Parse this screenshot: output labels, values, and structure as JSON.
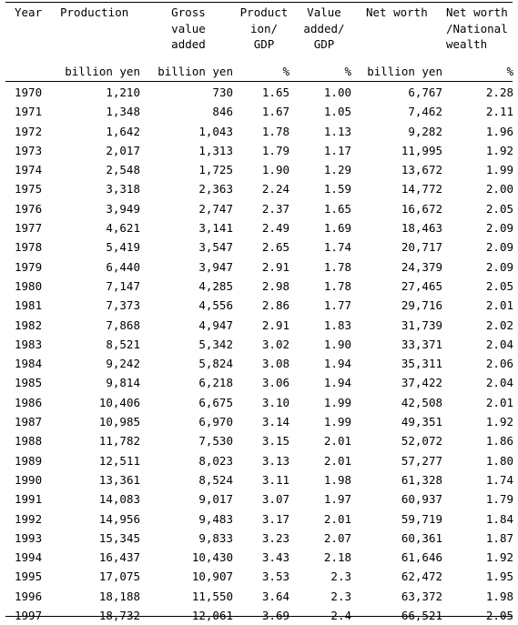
{
  "table": {
    "headers": [
      "Year",
      "Production",
      "Gross\nvalue\nadded",
      "Product\nion/\nGDP",
      "Value\nadded/\nGDP",
      "Net worth",
      "Net worth\n/National\nwealth"
    ],
    "units": [
      "",
      "billion yen",
      "billion yen",
      "%",
      "%",
      "billion yen",
      "%"
    ],
    "rows": [
      [
        "1970",
        "1,210",
        "730",
        "1.65",
        "1.00",
        "6,767",
        "2.28"
      ],
      [
        "1971",
        "1,348",
        "846",
        "1.67",
        "1.05",
        "7,462",
        "2.11"
      ],
      [
        "1972",
        "1,642",
        "1,043",
        "1.78",
        "1.13",
        "9,282",
        "1.96"
      ],
      [
        "1973",
        "2,017",
        "1,313",
        "1.79",
        "1.17",
        "11,995",
        "1.92"
      ],
      [
        "1974",
        "2,548",
        "1,725",
        "1.90",
        "1.29",
        "13,672",
        "1.99"
      ],
      [
        "1975",
        "3,318",
        "2,363",
        "2.24",
        "1.59",
        "14,772",
        "2.00"
      ],
      [
        "1976",
        "3,949",
        "2,747",
        "2.37",
        "1.65",
        "16,672",
        "2.05"
      ],
      [
        "1977",
        "4,621",
        "3,141",
        "2.49",
        "1.69",
        "18,463",
        "2.09"
      ],
      [
        "1978",
        "5,419",
        "3,547",
        "2.65",
        "1.74",
        "20,717",
        "2.09"
      ],
      [
        "1979",
        "6,440",
        "3,947",
        "2.91",
        "1.78",
        "24,379",
        "2.09"
      ],
      [
        "1980",
        "7,147",
        "4,285",
        "2.98",
        "1.78",
        "27,465",
        "2.05"
      ],
      [
        "1981",
        "7,373",
        "4,556",
        "2.86",
        "1.77",
        "29,716",
        "2.01"
      ],
      [
        "1982",
        "7,868",
        "4,947",
        "2.91",
        "1.83",
        "31,739",
        "2.02"
      ],
      [
        "1983",
        "8,521",
        "5,342",
        "3.02",
        "1.90",
        "33,371",
        "2.04"
      ],
      [
        "1984",
        "9,242",
        "5,824",
        "3.08",
        "1.94",
        "35,311",
        "2.06"
      ],
      [
        "1985",
        "9,814",
        "6,218",
        "3.06",
        "1.94",
        "37,422",
        "2.04"
      ],
      [
        "1986",
        "10,406",
        "6,675",
        "3.10",
        "1.99",
        "42,508",
        "2.01"
      ],
      [
        "1987",
        "10,985",
        "6,970",
        "3.14",
        "1.99",
        "49,351",
        "1.92"
      ],
      [
        "1988",
        "11,782",
        "7,530",
        "3.15",
        "2.01",
        "52,072",
        "1.86"
      ],
      [
        "1989",
        "12,511",
        "8,023",
        "3.13",
        "2.01",
        "57,277",
        "1.80"
      ],
      [
        "1990",
        "13,361",
        "8,524",
        "3.11",
        "1.98",
        "61,328",
        "1.74"
      ],
      [
        "1991",
        "14,083",
        "9,017",
        "3.07",
        "1.97",
        "60,937",
        "1.79"
      ],
      [
        "1992",
        "14,956",
        "9,483",
        "3.17",
        "2.01",
        "59,719",
        "1.84"
      ],
      [
        "1993",
        "15,345",
        "9,833",
        "3.23",
        "2.07",
        "60,361",
        "1.87"
      ],
      [
        "1994",
        "16,437",
        "10,430",
        "3.43",
        "2.18",
        "61,646",
        "1.92"
      ],
      [
        "1995",
        "17,075",
        "10,907",
        "3.53",
        "2.3",
        "62,472",
        "1.95"
      ],
      [
        "1996",
        "18,188",
        "11,550",
        "3.64",
        "2.3",
        "63,372",
        "1.98"
      ],
      [
        "1997",
        "18,732",
        "12,061",
        "3.69",
        "2.4",
        "66,521",
        "2.05"
      ]
    ]
  }
}
